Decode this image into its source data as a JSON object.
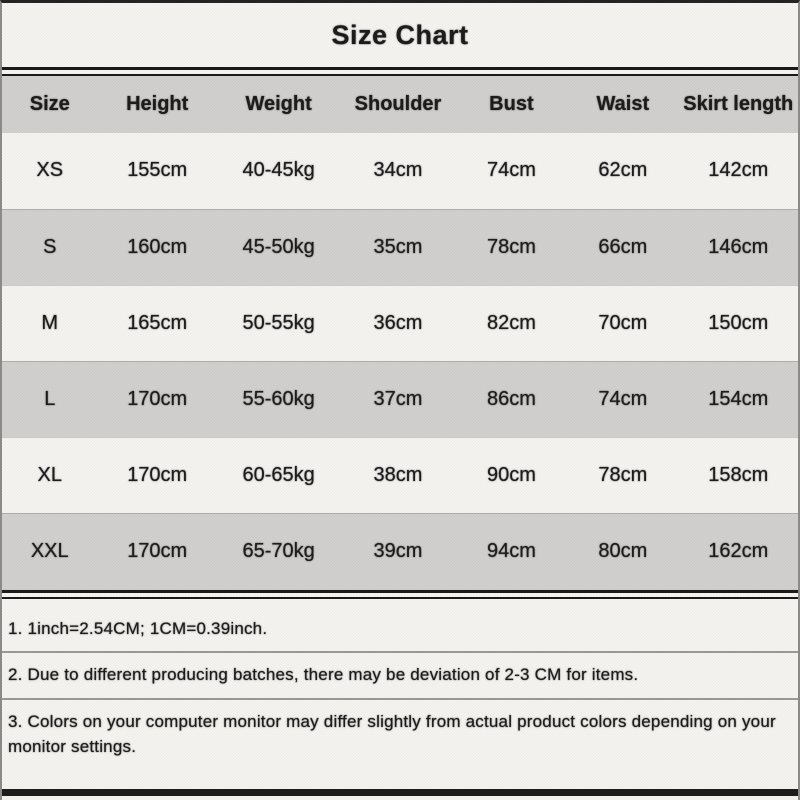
{
  "title": "Size Chart",
  "table": {
    "headers": [
      "Size",
      "Height",
      "Weight",
      "Shoulder",
      "Bust",
      "Waist",
      "Skirt length"
    ],
    "rows": [
      [
        "XS",
        "155cm",
        "40-45kg",
        "34cm",
        "74cm",
        "62cm",
        "142cm"
      ],
      [
        "S",
        "160cm",
        "45-50kg",
        "35cm",
        "78cm",
        "66cm",
        "146cm"
      ],
      [
        "M",
        "165cm",
        "50-55kg",
        "36cm",
        "82cm",
        "70cm",
        "150cm"
      ],
      [
        "L",
        "170cm",
        "55-60kg",
        "37cm",
        "86cm",
        "74cm",
        "154cm"
      ],
      [
        "XL",
        "170cm",
        "60-65kg",
        "38cm",
        "90cm",
        "78cm",
        "158cm"
      ],
      [
        "XXL",
        "170cm",
        "65-70kg",
        "39cm",
        "94cm",
        "80cm",
        "162cm"
      ]
    ],
    "shaded_row_indexes": [
      1,
      3,
      5
    ]
  },
  "notes": [
    "1. 1inch=2.54CM; 1CM=0.39inch.",
    "2. Due to different producing batches, there may be deviation of 2-3 CM for items.",
    "3. Colors on your computer monitor may differ slightly from actual product colors depending on your monitor settings."
  ],
  "colors": {
    "background": "#f6f5f2",
    "shaded_row": "#d3d2cf",
    "text": "#1c1c1c",
    "rule": "#1a1a1a"
  }
}
